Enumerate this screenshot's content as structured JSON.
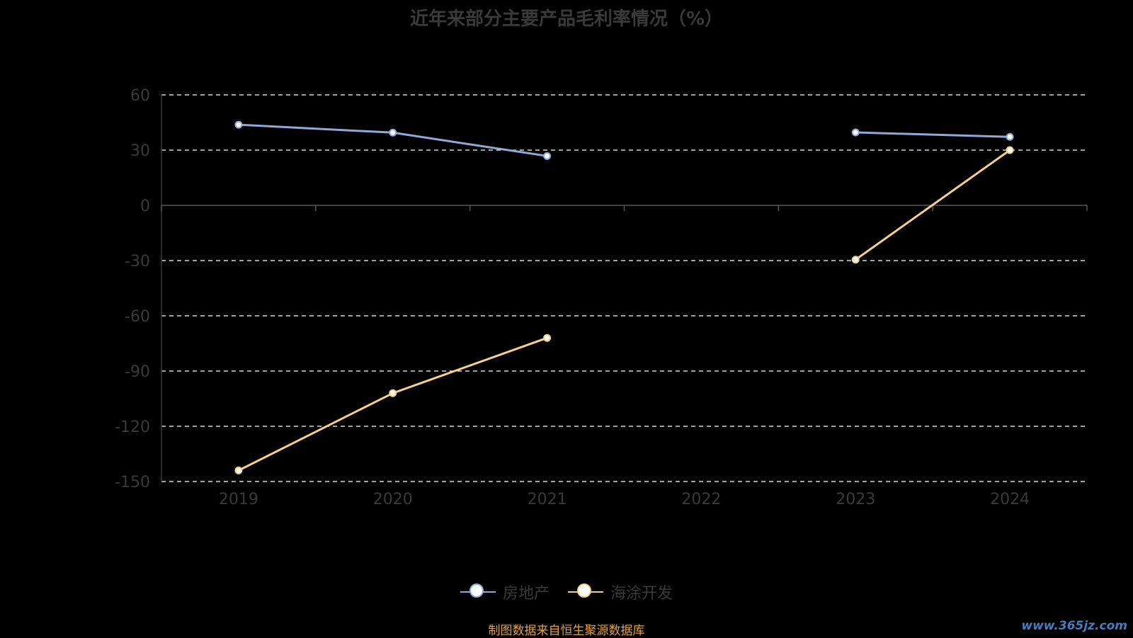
{
  "chart_data": {
    "type": "line",
    "title": "近年来部分主要产品毛利率情况（%）",
    "categories": [
      "2019",
      "2020",
      "2021",
      "2022",
      "2023",
      "2024"
    ],
    "yticks": [
      60,
      30,
      0,
      -30,
      -60,
      -90,
      -120,
      -150
    ],
    "ylim": [
      -150,
      60
    ],
    "grid": true,
    "legend_position": "bottom",
    "series": [
      {
        "name": "房地产",
        "color": "#8fa9d8",
        "values": [
          43.8,
          39.5,
          26.8,
          null,
          39.6,
          37.2
        ]
      },
      {
        "name": "海涂开发",
        "color": "#f5d08a",
        "values": [
          -144.0,
          -102.0,
          -72.0,
          null,
          -29.5,
          30.0
        ]
      }
    ]
  },
  "source_text": "制图数据来自恒生聚源数据库",
  "watermark_text": "www.365jz.com"
}
